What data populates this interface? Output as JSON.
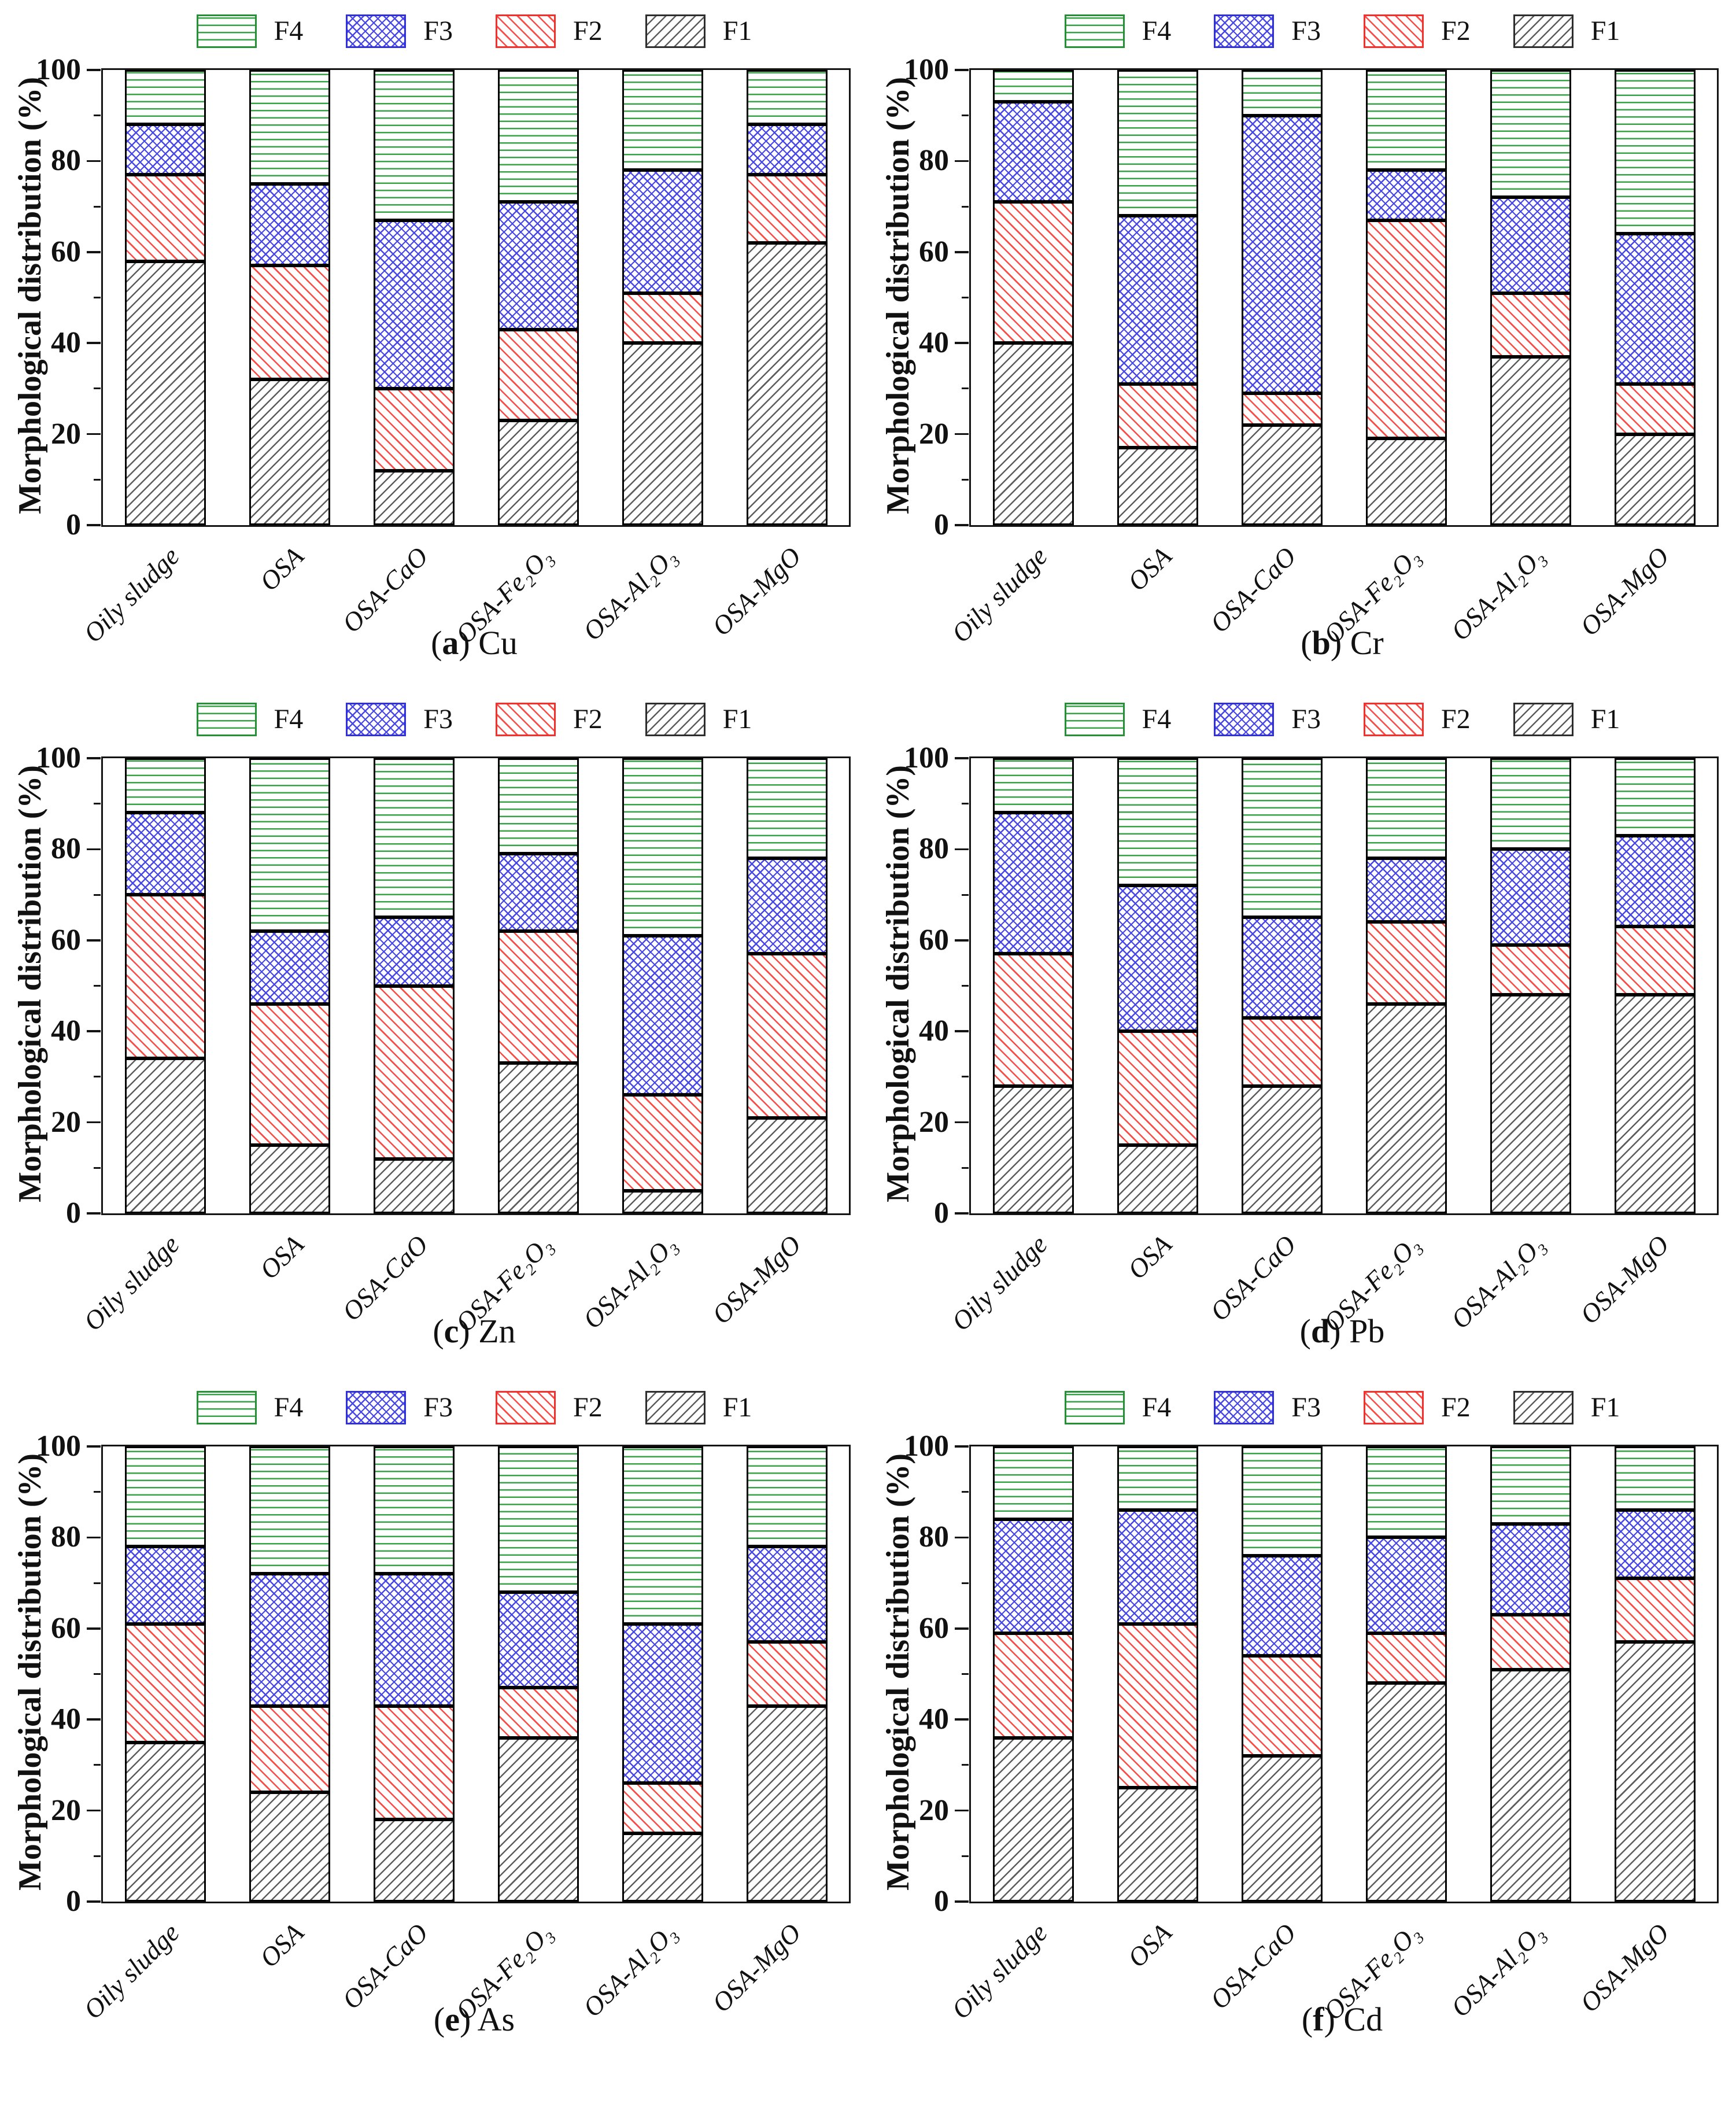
{
  "axis": {
    "ylabel": "Morphological distribution (%)",
    "yticks_major": [
      0,
      20,
      40,
      60,
      80,
      100
    ],
    "yticks_minor": [
      10,
      30,
      50,
      70,
      90
    ],
    "ylim": [
      0,
      100
    ]
  },
  "legend": {
    "position": "top-center",
    "entries": [
      {
        "id": "f4",
        "label": "F4",
        "color": "#249134",
        "pattern": "horizontal-lines"
      },
      {
        "id": "f3",
        "label": "F3",
        "color": "#3030dd",
        "pattern": "diagonal-crosshatch"
      },
      {
        "id": "f2",
        "label": "F2",
        "color": "#f52f2b",
        "pattern": "diagonal-down-lines"
      },
      {
        "id": "f1",
        "label": "F1",
        "color": "#2e2e2e",
        "pattern": "diagonal-up-lines"
      }
    ]
  },
  "caption_format": {
    "open": "(",
    "close": ") "
  },
  "chart_data": [
    {
      "type": "bar",
      "stacked": true,
      "caption_letter": "a",
      "caption_metal": "Cu",
      "ylabel": "Morphological distribution (%)",
      "ylim": [
        0,
        100
      ],
      "grid": false,
      "categories": [
        "Oily sludge",
        "OSA",
        "OSA-CaO",
        "OSA-Fe₂O₃",
        "OSA-Al₂O₃",
        "OSA-MgO"
      ],
      "series": [
        {
          "name": "F1",
          "values": [
            58,
            32,
            12,
            23,
            40,
            62
          ]
        },
        {
          "name": "F2",
          "values": [
            19,
            25,
            18,
            20,
            11,
            15
          ]
        },
        {
          "name": "F3",
          "values": [
            11,
            18,
            37,
            28,
            27,
            11
          ]
        },
        {
          "name": "F4",
          "values": [
            12,
            25,
            33,
            29,
            22,
            12
          ]
        }
      ]
    },
    {
      "type": "bar",
      "stacked": true,
      "caption_letter": "b",
      "caption_metal": "Cr",
      "ylabel": "Morphological distribution (%)",
      "ylim": [
        0,
        100
      ],
      "grid": false,
      "categories": [
        "Oily sludge",
        "OSA",
        "OSA-CaO",
        "OSA-Fe₂O₃",
        "OSA-Al₂O₃",
        "OSA-MgO"
      ],
      "series": [
        {
          "name": "F1",
          "values": [
            40,
            17,
            22,
            19,
            37,
            20
          ]
        },
        {
          "name": "F2",
          "values": [
            31,
            14,
            7,
            48,
            14,
            11
          ]
        },
        {
          "name": "F3",
          "values": [
            22,
            37,
            61,
            11,
            21,
            33
          ]
        },
        {
          "name": "F4",
          "values": [
            7,
            32,
            10,
            22,
            28,
            36
          ]
        }
      ]
    },
    {
      "type": "bar",
      "stacked": true,
      "caption_letter": "c",
      "caption_metal": "Zn",
      "ylabel": "Morphological distribution (%)",
      "ylim": [
        0,
        100
      ],
      "grid": false,
      "categories": [
        "Oily sludge",
        "OSA",
        "OSA-CaO",
        "OSA-Fe₂O₃",
        "OSA-Al₂O₃",
        "OSA-MgO"
      ],
      "series": [
        {
          "name": "F1",
          "values": [
            34,
            15,
            12,
            33,
            5,
            21
          ]
        },
        {
          "name": "F2",
          "values": [
            36,
            31,
            38,
            29,
            21,
            36
          ]
        },
        {
          "name": "F3",
          "values": [
            18,
            16,
            15,
            17,
            35,
            21
          ]
        },
        {
          "name": "F4",
          "values": [
            12,
            38,
            35,
            21,
            39,
            22
          ]
        }
      ]
    },
    {
      "type": "bar",
      "stacked": true,
      "caption_letter": "d",
      "caption_metal": "Pb",
      "ylabel": "Morphological distribution (%)",
      "ylim": [
        0,
        100
      ],
      "grid": false,
      "categories": [
        "Oily sludge",
        "OSA",
        "OSA-CaO",
        "OSA-Fe₂O₃",
        "OSA-Al₂O₃",
        "OSA-MgO"
      ],
      "series": [
        {
          "name": "F1",
          "values": [
            28,
            15,
            28,
            46,
            48,
            48
          ]
        },
        {
          "name": "F2",
          "values": [
            29,
            25,
            15,
            18,
            11,
            15
          ]
        },
        {
          "name": "F3",
          "values": [
            31,
            32,
            22,
            14,
            21,
            20
          ]
        },
        {
          "name": "F4",
          "values": [
            12,
            28,
            35,
            22,
            20,
            17
          ]
        }
      ]
    },
    {
      "type": "bar",
      "stacked": true,
      "caption_letter": "e",
      "caption_metal": "As",
      "ylabel": "Morphological distribution (%)",
      "ylim": [
        0,
        100
      ],
      "grid": false,
      "categories": [
        "Oily sludge",
        "OSA",
        "OSA-CaO",
        "OSA-Fe₂O₃",
        "OSA-Al₂O₃",
        "OSA-MgO"
      ],
      "series": [
        {
          "name": "F1",
          "values": [
            35,
            24,
            18,
            36,
            15,
            43
          ]
        },
        {
          "name": "F2",
          "values": [
            26,
            19,
            25,
            11,
            11,
            14
          ]
        },
        {
          "name": "F3",
          "values": [
            17,
            29,
            29,
            21,
            35,
            21
          ]
        },
        {
          "name": "F4",
          "values": [
            22,
            28,
            28,
            32,
            39,
            22
          ]
        }
      ]
    },
    {
      "type": "bar",
      "stacked": true,
      "caption_letter": "f",
      "caption_metal": "Cd",
      "ylabel": "Morphological distribution (%)",
      "ylim": [
        0,
        100
      ],
      "grid": false,
      "categories": [
        "Oily sludge",
        "OSA",
        "OSA-CaO",
        "OSA-Fe₂O₃",
        "OSA-Al₂O₃",
        "OSA-MgO"
      ],
      "series": [
        {
          "name": "F1",
          "values": [
            36,
            25,
            32,
            48,
            51,
            57
          ]
        },
        {
          "name": "F2",
          "values": [
            23,
            36,
            22,
            11,
            12,
            14
          ]
        },
        {
          "name": "F3",
          "values": [
            25,
            25,
            22,
            21,
            20,
            15
          ]
        },
        {
          "name": "F4",
          "values": [
            16,
            14,
            24,
            20,
            17,
            14
          ]
        }
      ]
    }
  ]
}
